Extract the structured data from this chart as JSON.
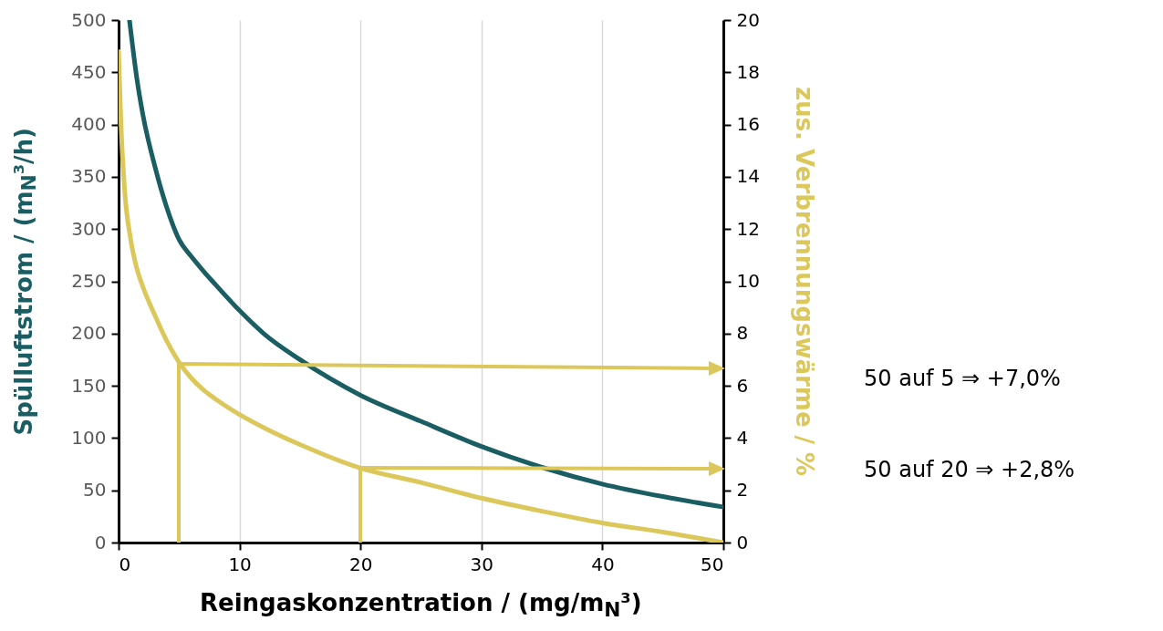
{
  "chart_data": {
    "type": "line",
    "xlabel": "Reingaskonzentration / (mg/m$_{N}$³)",
    "ylabel": "Spülluftstrom / (m$_{N}$³/h)",
    "y2label": "zus. Verbrennungswärme / %",
    "xlim": [
      0,
      50
    ],
    "xticks": [
      0,
      10,
      20,
      30,
      40,
      50
    ],
    "ylim": [
      0,
      500
    ],
    "yticks": [
      0,
      50,
      100,
      150,
      200,
      250,
      300,
      350,
      400,
      450,
      500
    ],
    "y2lim": [
      0,
      20
    ],
    "y2ticks": [
      0,
      2,
      4,
      6,
      8,
      10,
      12,
      14,
      16,
      18,
      20
    ],
    "grid": "x",
    "legend": false,
    "marker": "none",
    "line_style": "solid",
    "series": [
      {
        "color": "#1a5e63",
        "x": [
          0.9,
          1.5,
          2,
          3,
          4,
          5,
          6,
          7,
          8,
          10,
          12,
          15,
          20,
          25,
          30,
          35,
          40,
          45,
          50
        ],
        "values": [
          500,
          445,
          410,
          360,
          320,
          290,
          274,
          260,
          247,
          222,
          200,
          175,
          141,
          116,
          92,
          72,
          56,
          44,
          34
        ]
      },
      {
        "color": "#dcc85a",
        "axis": "y2",
        "x": [
          0,
          0.2,
          0.5,
          1,
          1.5,
          2,
          3,
          4,
          5,
          6,
          7,
          8,
          10,
          12,
          15,
          20,
          25,
          30,
          35,
          40,
          45,
          50
        ],
        "values": [
          18.8,
          16,
          13.5,
          11.6,
          10.5,
          9.8,
          8.7,
          7.7,
          6.9,
          6.3,
          5.85,
          5.5,
          4.9,
          4.4,
          3.75,
          2.85,
          2.3,
          1.7,
          1.2,
          0.75,
          0.4,
          0
        ]
      }
    ],
    "annotations": [
      "50 auf 5 ⇒ +7,0%",
      "50 auf 20 ⇒ +2,8%"
    ]
  }
}
